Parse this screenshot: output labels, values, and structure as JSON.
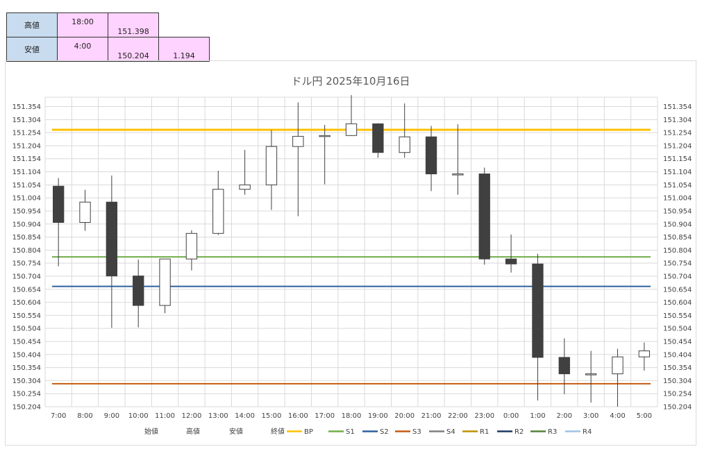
{
  "summary": {
    "high": {
      "label": "高値",
      "time": "18:00",
      "value": "151.398"
    },
    "low": {
      "label": "安値",
      "time": "4:00",
      "value": "150.204",
      "diff": "1.194"
    }
  },
  "chart_data": {
    "type": "candlestick",
    "title": "ドル円  2025年10月16日",
    "ylim": [
      150.204,
      151.39
    ],
    "yticks": [
      "151.354",
      "151.304",
      "151.254",
      "151.204",
      "151.154",
      "151.104",
      "151.054",
      "151.004",
      "150.954",
      "150.904",
      "150.854",
      "150.804",
      "150.754",
      "150.704",
      "150.654",
      "150.604",
      "150.554",
      "150.504",
      "150.454",
      "150.404",
      "150.354",
      "150.304",
      "150.254",
      "150.204"
    ],
    "categories": [
      "7:00",
      "8:00",
      "9:00",
      "10:00",
      "11:00",
      "12:00",
      "13:00",
      "14:00",
      "15:00",
      "16:00",
      "17:00",
      "18:00",
      "19:00",
      "20:00",
      "21:00",
      "22:00",
      "23:00",
      "0:00",
      "1:00",
      "2:00",
      "3:00",
      "4:00",
      "5:00"
    ],
    "open": [
      151.049,
      150.91,
      150.988,
      150.705,
      150.592,
      150.77,
      150.868,
      151.037,
      151.054,
      151.201,
      151.24,
      151.243,
      151.288,
      151.178,
      151.238,
      151.096,
      151.096,
      150.77,
      150.751,
      150.393,
      150.33,
      150.33,
      150.395
    ],
    "high": [
      151.08,
      151.035,
      151.09,
      150.768,
      150.768,
      150.88,
      151.108,
      151.188,
      151.264,
      151.37,
      151.284,
      151.398,
      151.29,
      151.366,
      151.28,
      151.286,
      151.12,
      150.864,
      150.79,
      150.466,
      150.418,
      150.426,
      150.45
    ],
    "low": [
      150.742,
      150.878,
      150.506,
      150.508,
      150.562,
      150.726,
      150.862,
      151.016,
      150.958,
      150.934,
      151.056,
      151.241,
      151.158,
      151.158,
      151.03,
      151.016,
      150.748,
      150.718,
      150.228,
      150.252,
      150.22,
      150.204,
      150.342
    ],
    "close": [
      150.91,
      150.988,
      150.705,
      150.592,
      150.77,
      150.868,
      151.037,
      151.054,
      151.201,
      151.24,
      151.243,
      151.288,
      151.178,
      151.238,
      151.096,
      151.096,
      150.77,
      150.751,
      150.393,
      150.33,
      150.33,
      150.395,
      150.418
    ],
    "series": [
      {
        "name": "BP",
        "value": 151.265,
        "color": "#ffc000"
      },
      {
        "name": "S1",
        "value": 150.778,
        "color": "#70ad47"
      },
      {
        "name": "S2",
        "value": 150.665,
        "color": "#2e5f9e"
      },
      {
        "name": "S3",
        "value": 150.292,
        "color": "#c55a11"
      }
    ],
    "legend": [
      "始値",
      "高値",
      "安値",
      "終値",
      "BP",
      "S1",
      "S2",
      "S3",
      "S4",
      "R1",
      "R2",
      "R3",
      "R4"
    ],
    "legend_colors": [
      "",
      "",
      "",
      "",
      "#ffc000",
      "#70ad47",
      "#2e5f9e",
      "#c55a11",
      "#7f7f7f",
      "#bf8f00",
      "#1f3864",
      "#548235",
      "#9dc3e6"
    ],
    "legend_position": "bottom",
    "colors": {
      "up_fill": "#ffffff",
      "down_fill": "#404040",
      "candle_edge": "#404040",
      "grid": "#d9d9d9"
    }
  }
}
